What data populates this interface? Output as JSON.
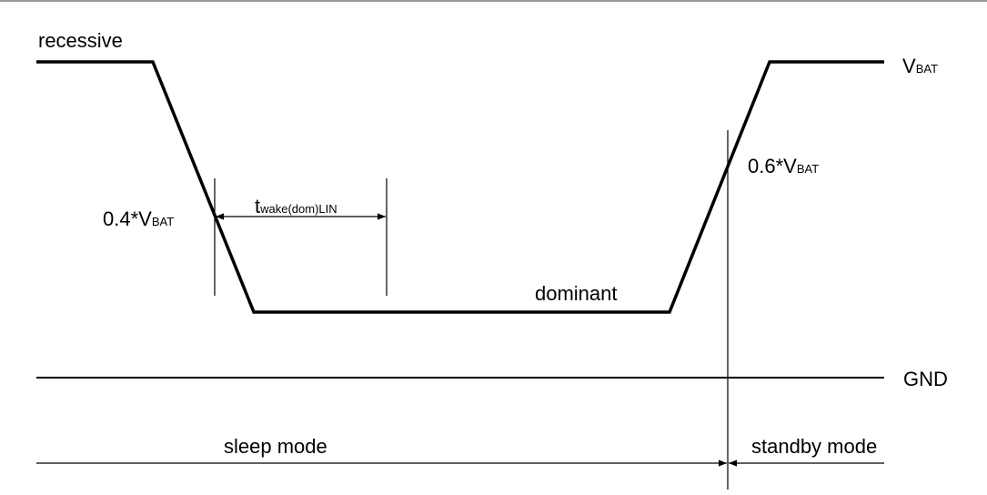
{
  "diagram": {
    "labels": {
      "recessive": "recessive",
      "dominant": "dominant",
      "gnd": "GND",
      "vbat_main": "V",
      "vbat_sub": "BAT",
      "threshold_low_main": "0.4*V",
      "threshold_low_sub": "BAT",
      "threshold_high_main": "0.6*V",
      "threshold_high_sub": "BAT",
      "twake_main": "t",
      "twake_sub": "wake(dom)LIN",
      "sleep_mode": "sleep mode",
      "standby_mode": "standby mode"
    },
    "colors": {
      "line": "#000000",
      "background": "#ffffff"
    }
  }
}
